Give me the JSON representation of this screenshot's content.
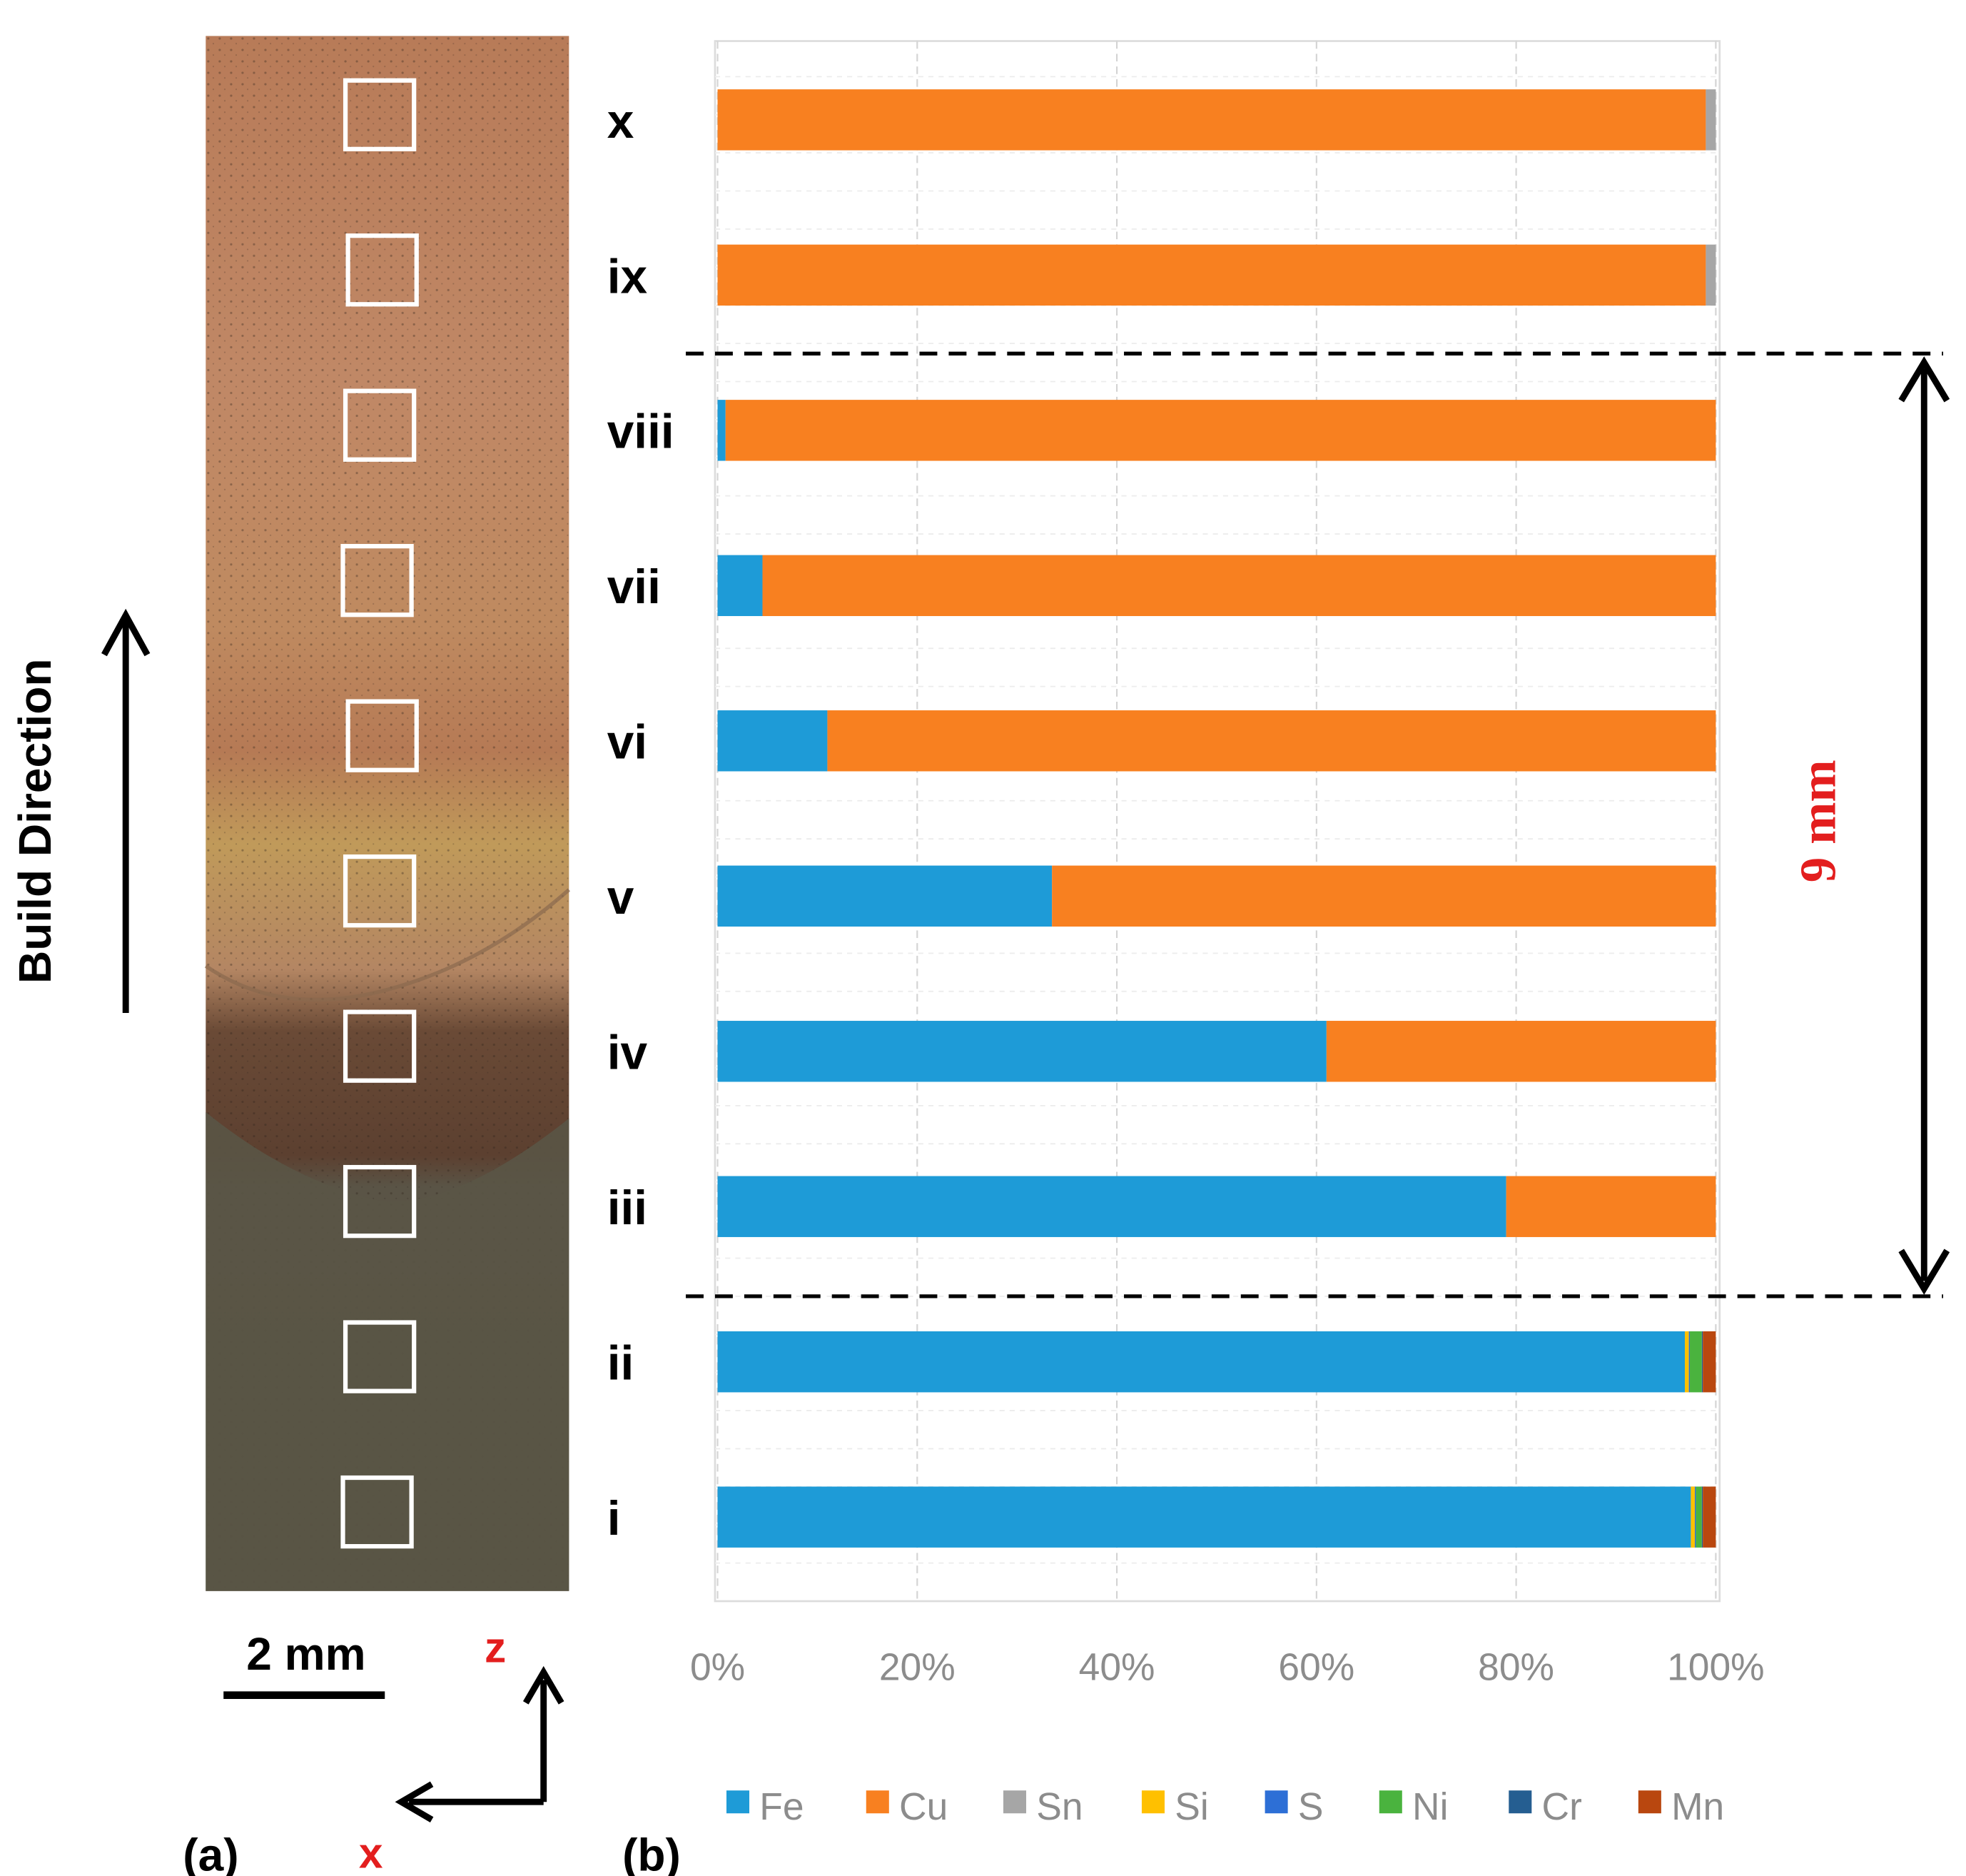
{
  "panel_a": {
    "label": "(a)",
    "build_direction": "Build Direction",
    "scale_bar": "2 mm",
    "axis_z": "z",
    "axis_x": "x"
  },
  "panel_b": {
    "label": "(b)",
    "dimension_label": "9 mm"
  },
  "chart_data": {
    "type": "bar",
    "orientation": "horizontal",
    "stacked": "percent",
    "categories": [
      "x",
      "ix",
      "viii",
      "vii",
      "vi",
      "v",
      "iv",
      "iii",
      "ii",
      "i"
    ],
    "xlim": [
      0,
      100
    ],
    "xticks": [
      "0%",
      "20%",
      "40%",
      "60%",
      "80%",
      "100%"
    ],
    "grid": true,
    "legend_position": "bottom",
    "series": [
      {
        "name": "Fe",
        "color": "#1e9bd7",
        "values": [
          0,
          0,
          0.8,
          4.5,
          11,
          33.5,
          61,
          79,
          96.9,
          97.5
        ]
      },
      {
        "name": "Cu",
        "color": "#f88020",
        "values": [
          99,
          99,
          99.2,
          95.5,
          89,
          66.5,
          39,
          21,
          0,
          0
        ]
      },
      {
        "name": "Sn",
        "color": "#a6a6a6",
        "values": [
          1,
          1,
          0,
          0,
          0,
          0,
          0,
          0,
          0,
          0
        ]
      },
      {
        "name": "Si",
        "color": "#ffc000",
        "values": [
          0,
          0,
          0,
          0,
          0,
          0,
          0,
          0,
          0.4,
          0.4
        ]
      },
      {
        "name": "S",
        "color": "#2d6fd6",
        "values": [
          0,
          0,
          0,
          0,
          0,
          0,
          0,
          0,
          0.1,
          0.1
        ]
      },
      {
        "name": "Ni",
        "color": "#4ab33e",
        "values": [
          0,
          0,
          0,
          0,
          0,
          0,
          0,
          0,
          1.2,
          0.6
        ]
      },
      {
        "name": "Cr",
        "color": "#255e91",
        "values": [
          0,
          0,
          0,
          0,
          0,
          0,
          0,
          0,
          0.1,
          0.1
        ]
      },
      {
        "name": "Mn",
        "color": "#b9470f",
        "values": [
          0,
          0,
          0,
          0,
          0,
          0,
          0,
          0,
          1.3,
          1.3
        ]
      }
    ]
  }
}
